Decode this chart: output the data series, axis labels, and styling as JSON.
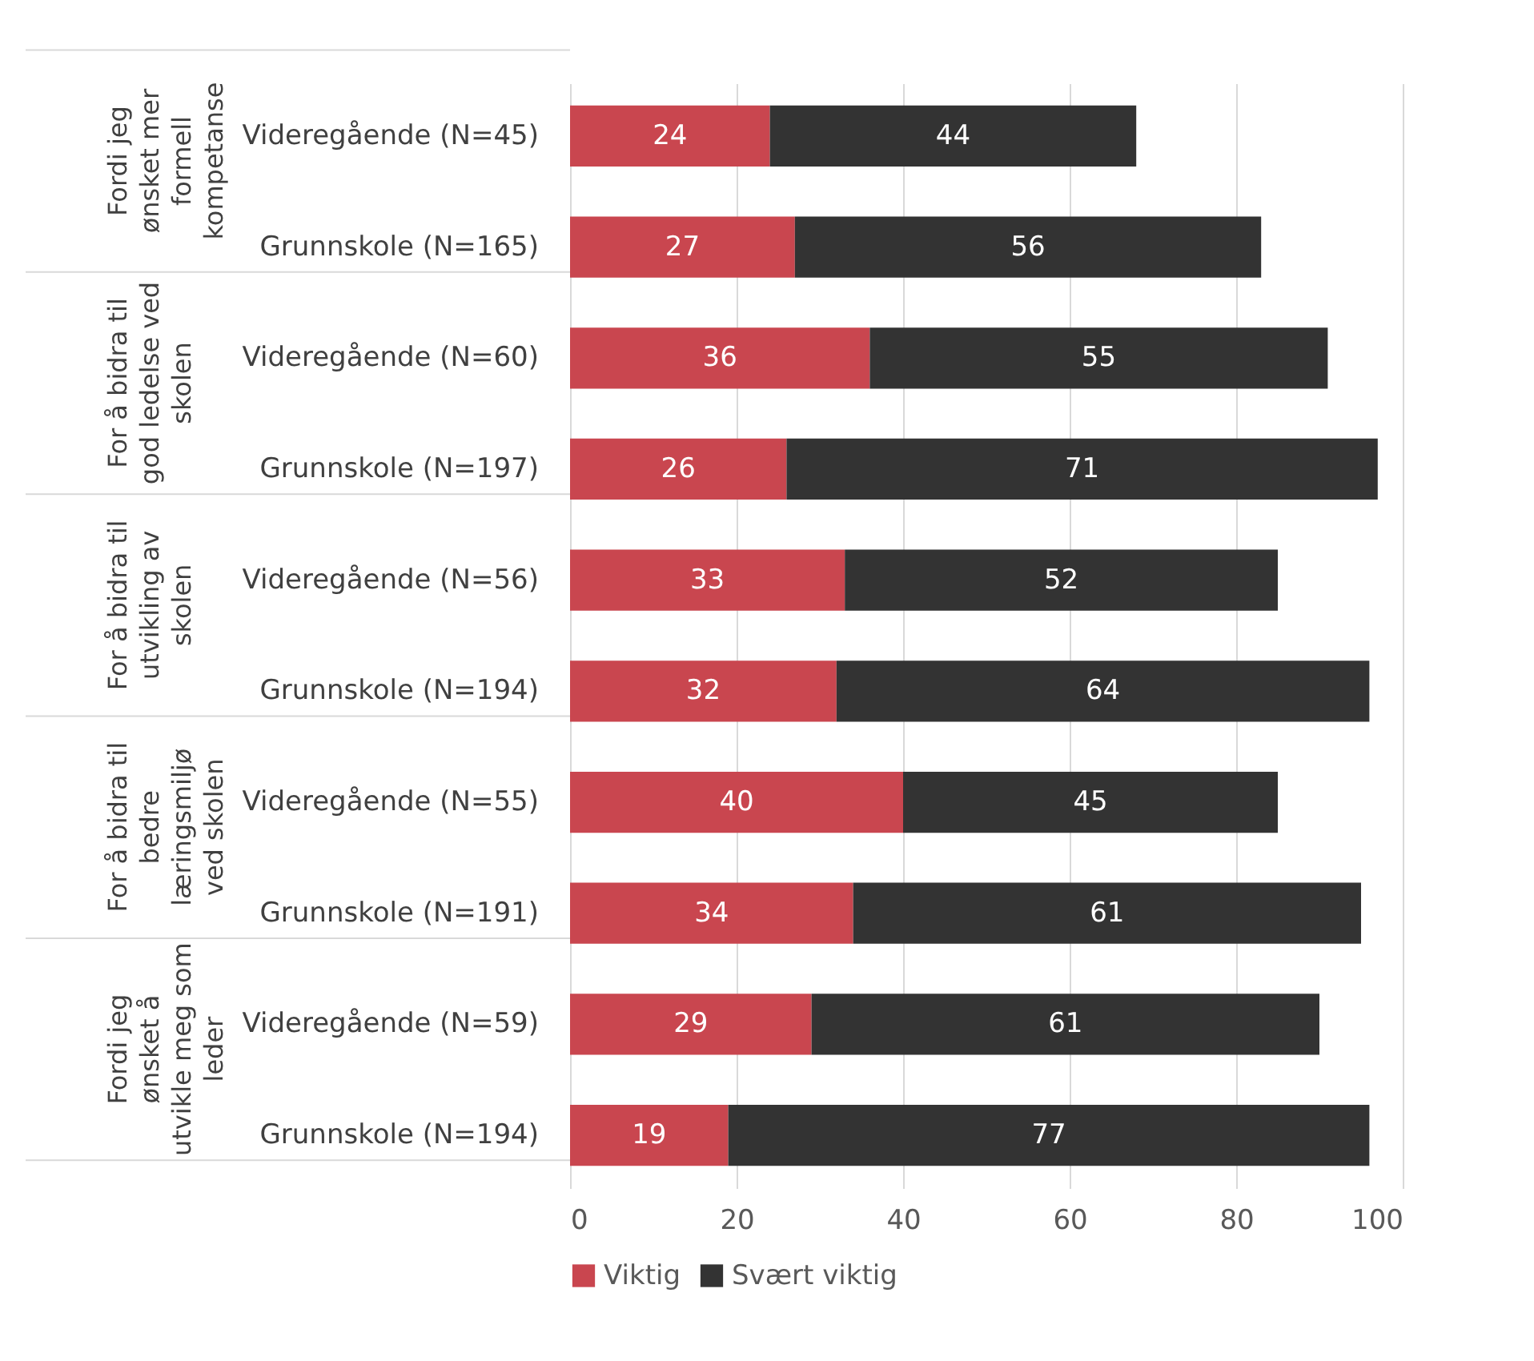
{
  "chart_data": {
    "type": "bar",
    "orientation": "horizontal",
    "stacked": true,
    "categories": [
      "Videregående (N=45)",
      "Grunnskole (N=165)",
      "Videregående (N=60)",
      "Grunnskole (N=197)",
      "Videregående (N=56)",
      "Grunnskole (N=194)",
      "Videregående (N=55)",
      "Grunnskole (N=191)",
      "Videregående (N=59)",
      "Grunnskole (N=194)"
    ],
    "annotations": [
      "Fordi jeg ønsket mer formell kompetanse",
      "For å bidra til god ledelse ved skolen",
      "For å bidra til utvikling av skolen",
      "For å bidra til bedre læringsmiljø ved skolen",
      "Fordi jeg ønsket å utvikle meg som leder"
    ],
    "series": [
      {
        "name": "Viktig",
        "color": "#c9464f",
        "values": [
          24,
          27,
          36,
          26,
          33,
          32,
          40,
          34,
          29,
          19
        ]
      },
      {
        "name": "Svært viktig",
        "color": "#333333",
        "values": [
          44,
          56,
          55,
          71,
          52,
          64,
          45,
          61,
          61,
          77
        ]
      }
    ],
    "xlim": [
      0,
      100
    ],
    "xticks": [
      0,
      20,
      40,
      60,
      80,
      100
    ],
    "grid": "x",
    "legend": "bottom",
    "data_labels": true
  }
}
